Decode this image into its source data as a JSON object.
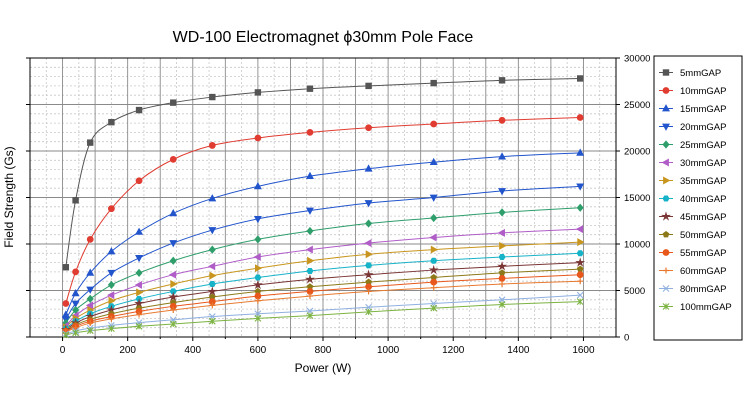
{
  "chart_data": {
    "type": "line",
    "title": "WD-100 Electromagnet ϕ30mm Pole Face",
    "xlabel": "Power (W)",
    "ylabel": "Field Strength (Gs)",
    "xlim": [
      -100,
      1700
    ],
    "ylim": [
      0,
      30000
    ],
    "x_ticks": [
      0,
      200,
      400,
      600,
      800,
      1000,
      1200,
      1400,
      1600
    ],
    "y_ticks": [
      0,
      5000,
      10000,
      15000,
      20000,
      25000,
      30000
    ],
    "y_axis_side": "both",
    "grid": true,
    "legend_position": "right",
    "x": [
      10,
      40,
      85,
      150,
      235,
      340,
      460,
      600,
      760,
      940,
      1140,
      1350,
      1590
    ],
    "series": [
      {
        "name": "5mmGAP",
        "color": "#555555",
        "marker": "square",
        "values": [
          7500,
          14700,
          20900,
          23100,
          24400,
          25200,
          25800,
          26300,
          26700,
          27000,
          27300,
          27600,
          27800
        ]
      },
      {
        "name": "10mmGAP",
        "color": "#e03c31",
        "marker": "circle",
        "values": [
          3600,
          7000,
          10500,
          13800,
          16800,
          19100,
          20600,
          21400,
          22000,
          22500,
          22900,
          23300,
          23600
        ]
      },
      {
        "name": "15mmGAP",
        "color": "#2255cc",
        "marker": "triangle-up",
        "values": [
          2400,
          4700,
          6900,
          9200,
          11300,
          13300,
          14900,
          16200,
          17300,
          18100,
          18800,
          19400,
          19800
        ]
      },
      {
        "name": "20mmGAP",
        "color": "#2255cc",
        "marker": "triangle-down",
        "values": [
          1900,
          3600,
          5100,
          6900,
          8500,
          10100,
          11500,
          12700,
          13600,
          14400,
          15000,
          15700,
          16200
        ]
      },
      {
        "name": "25mmGAP",
        "color": "#2e9e6b",
        "marker": "diamond",
        "values": [
          1500,
          2900,
          4100,
          5600,
          6900,
          8200,
          9400,
          10500,
          11400,
          12200,
          12800,
          13400,
          13900
        ]
      },
      {
        "name": "30mmGAP",
        "color": "#b05dc8",
        "marker": "triangle-left",
        "values": [
          1200,
          2300,
          3400,
          4500,
          5600,
          6700,
          7600,
          8600,
          9400,
          10100,
          10700,
          11200,
          11600
        ]
      },
      {
        "name": "35mmGAP",
        "color": "#c8961e",
        "marker": "triangle-right",
        "values": [
          1050,
          2000,
          2900,
          3900,
          4800,
          5700,
          6600,
          7400,
          8200,
          8900,
          9400,
          9800,
          10200
        ]
      },
      {
        "name": "40mmGAP",
        "color": "#17b3c8",
        "marker": "hexagon",
        "values": [
          900,
          1700,
          2500,
          3300,
          4100,
          4900,
          5700,
          6400,
          7100,
          7700,
          8200,
          8600,
          9000
        ]
      },
      {
        "name": "45mmGAP",
        "color": "#7a3535",
        "marker": "star",
        "values": [
          780,
          1500,
          2200,
          2900,
          3600,
          4300,
          4900,
          5600,
          6200,
          6700,
          7200,
          7600,
          8000
        ]
      },
      {
        "name": "50mmGAP",
        "color": "#8c7a1a",
        "marker": "pentagon",
        "values": [
          680,
          1300,
          1900,
          2500,
          3100,
          3700,
          4300,
          4900,
          5400,
          5900,
          6400,
          6900,
          7300
        ]
      },
      {
        "name": "55mmGAP",
        "color": "#e8581c",
        "marker": "circle",
        "values": [
          600,
          1150,
          1700,
          2200,
          2750,
          3300,
          3800,
          4400,
          4900,
          5400,
          5900,
          6300,
          6700
        ]
      },
      {
        "name": "60mmGAP",
        "color": "#e87a30",
        "marker": "plus",
        "values": [
          520,
          1000,
          1500,
          1950,
          2400,
          2900,
          3400,
          3900,
          4400,
          4900,
          5300,
          5700,
          6000
        ]
      },
      {
        "name": "80mmGAP",
        "color": "#8fb0e0",
        "marker": "cross",
        "values": [
          330,
          650,
          950,
          1250,
          1550,
          1850,
          2200,
          2500,
          2800,
          3200,
          3600,
          4000,
          4500
        ]
      },
      {
        "name": "100mmGAP",
        "color": "#7cb342",
        "marker": "asterisk",
        "values": [
          220,
          450,
          680,
          900,
          1150,
          1400,
          1700,
          2000,
          2300,
          2700,
          3100,
          3500,
          3800
        ]
      }
    ]
  }
}
